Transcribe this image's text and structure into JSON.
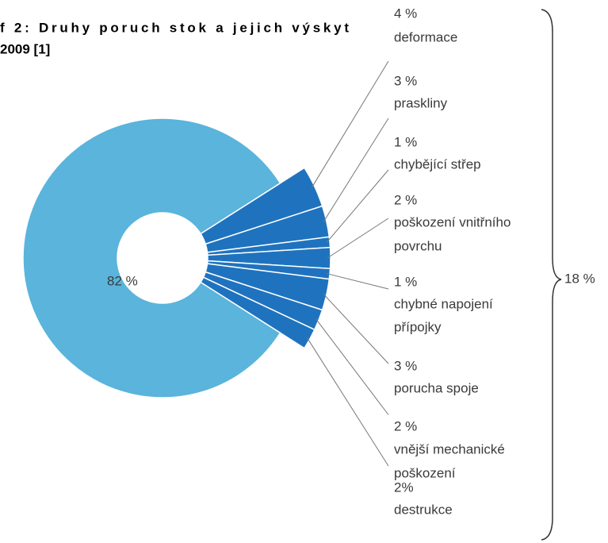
{
  "chart_data": {
    "type": "donut",
    "title": [
      "f 2: Druhy poruch stok a jejich výskyt",
      "2009 [1]"
    ],
    "categories": [
      null,
      [
        "deformace"
      ],
      [
        "praskliny"
      ],
      [
        "chybějící střep"
      ],
      [
        "poškození vnitřního",
        "povrchu"
      ],
      [
        "chybné napojení",
        "přípojky"
      ],
      [
        "porucha spoje"
      ],
      [
        "vnější mechanické",
        "poškození"
      ],
      [
        "destrukce"
      ]
    ],
    "values": [
      82,
      4,
      3,
      1,
      2,
      1,
      3,
      2,
      2
    ],
    "value_labels": [
      "82 %",
      "4 %",
      "3 %",
      "1 %",
      "2 %",
      "1 %",
      "3 %",
      "2 %",
      "2%"
    ],
    "colors": [
      "#5ab4dc",
      "#1f73be",
      "#1f73be",
      "#1f73be",
      "#1f73be",
      "#1f73be",
      "#1f73be",
      "#1f73be",
      "#1f73be"
    ],
    "bracket": {
      "value": 18,
      "label": "18 %"
    }
  }
}
